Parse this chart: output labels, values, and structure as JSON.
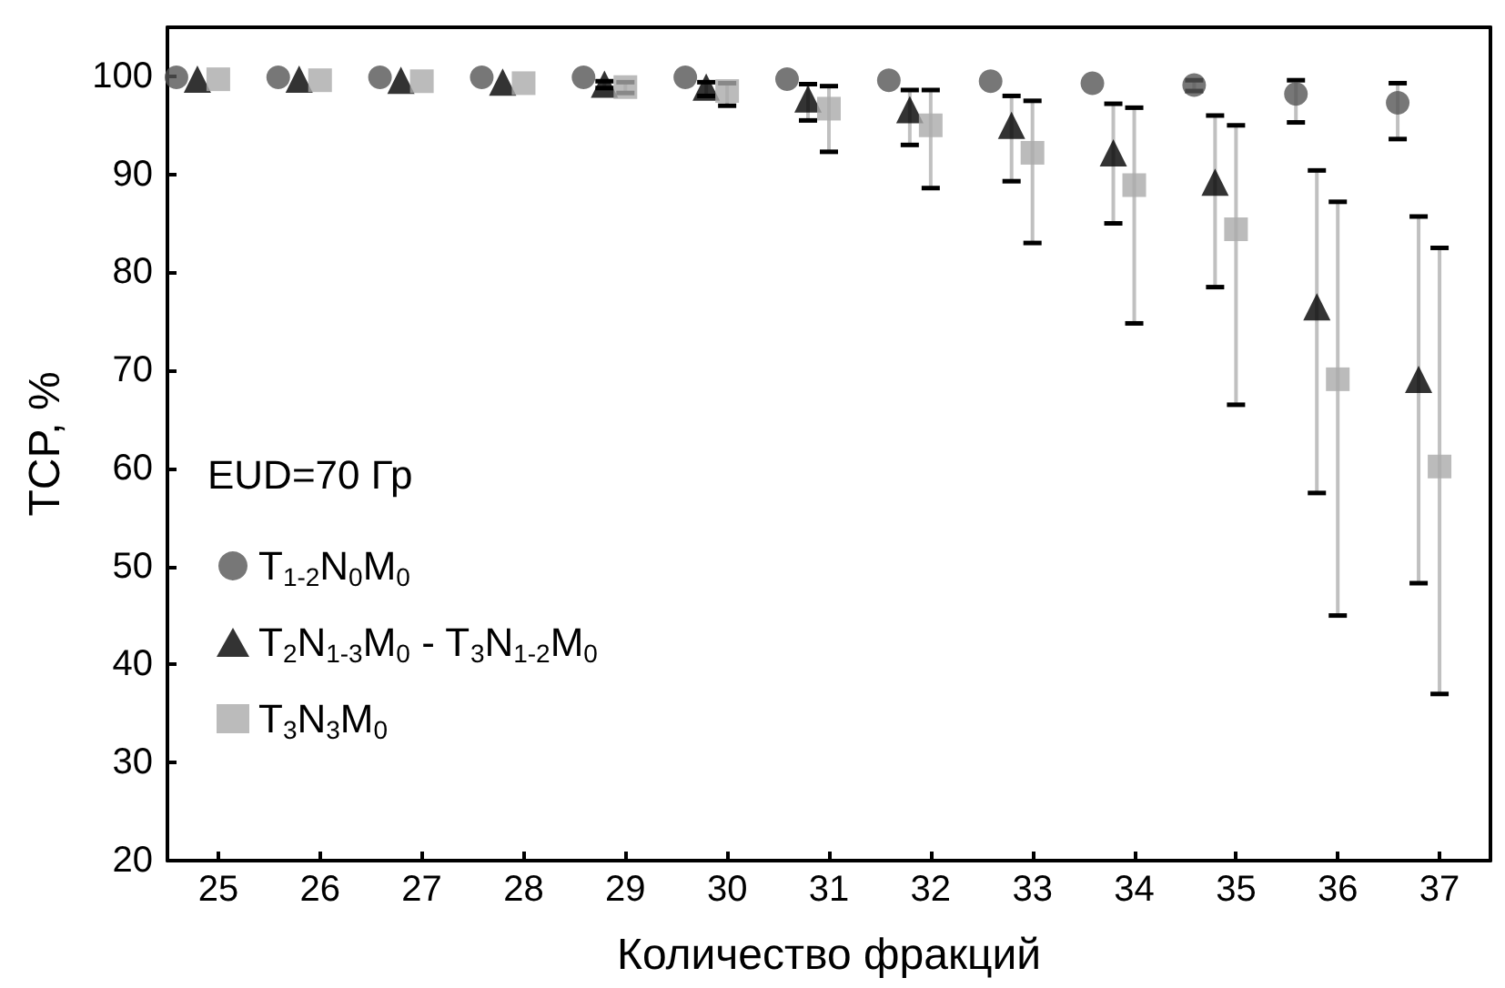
{
  "chart_data": {
    "type": "scatter",
    "xlabel": "Количество фракций",
    "ylabel": "TCP, %",
    "legend_title": "EUD=70 Гр",
    "categories": [
      "25",
      "26",
      "27",
      "28",
      "29",
      "30",
      "31",
      "32",
      "33",
      "34",
      "35",
      "36",
      "37"
    ],
    "series": [
      {
        "name": "T$_{1-2}$N$_{0}$M$_{0}$",
        "color": "#555555",
        "marker": "circle",
        "values": [
          99.9,
          99.9,
          99.9,
          99.9,
          99.9,
          99.9,
          99.7,
          99.6,
          99.5,
          99.3,
          99.1,
          98.2,
          97.3
        ],
        "errors": [
          null,
          null,
          null,
          null,
          null,
          null,
          null,
          null,
          null,
          null,
          [
            98.5,
            99.6
          ],
          [
            95.3,
            99.6
          ],
          [
            93.6,
            99.3
          ]
        ]
      },
      {
        "name": "T$_{2}$N$_{1-3}$M$_{0}$ - T$_{3}$N$_{1-2}$M$_{0}$",
        "color": "#000000",
        "marker": "triangle",
        "values": [
          99.7,
          99.7,
          99.6,
          99.4,
          99.2,
          98.9,
          97.7,
          96.6,
          95.0,
          92.2,
          89.2,
          76.5,
          69.1
        ],
        "errors": [
          null,
          null,
          null,
          null,
          [
            98.8,
            99.5
          ],
          [
            98.0,
            99.4
          ],
          [
            95.5,
            99.2
          ],
          [
            93.0,
            98.6
          ],
          [
            89.3,
            98.0
          ],
          [
            85.0,
            97.2
          ],
          [
            78.5,
            96.0
          ],
          [
            57.5,
            90.4
          ],
          [
            48.3,
            85.7
          ]
        ]
      },
      {
        "name": "T$_{3}$N$_{3}$M$_{0}$",
        "color": "#aaaaaa",
        "marker": "square",
        "values": [
          99.7,
          99.6,
          99.5,
          99.3,
          98.9,
          98.5,
          96.7,
          95.0,
          92.2,
          88.9,
          84.4,
          69.1,
          60.2
        ],
        "errors": [
          null,
          null,
          null,
          null,
          [
            98.3,
            99.4
          ],
          [
            97.0,
            99.3
          ],
          [
            92.3,
            99.0
          ],
          [
            88.6,
            98.6
          ],
          [
            83.0,
            97.5
          ],
          [
            74.8,
            96.8
          ],
          [
            66.5,
            95.0
          ],
          [
            45.0,
            87.2
          ],
          [
            37.0,
            82.5
          ]
        ]
      }
    ],
    "ylim": [
      20,
      105
    ],
    "yticks": [
      20,
      30,
      40,
      50,
      60,
      70,
      80,
      90,
      100
    ],
    "grid": false,
    "legend": "left"
  }
}
